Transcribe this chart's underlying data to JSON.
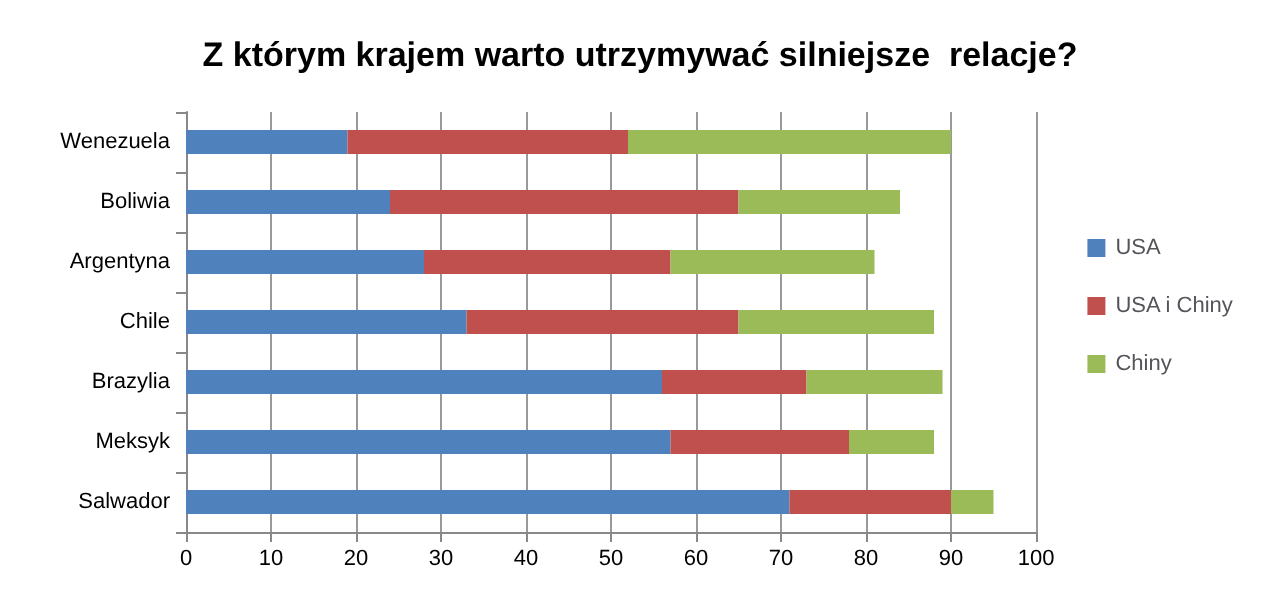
{
  "chart_data": {
    "type": "bar",
    "orientation": "horizontal",
    "stacked": true,
    "title": "Z którym krajem warto utrzymywać silniejsze  relacje?",
    "categories": [
      "Wenezuela",
      "Boliwia",
      "Argentyna",
      "Chile",
      "Brazylia",
      "Meksyk",
      "Salwador"
    ],
    "series": [
      {
        "name": "USA",
        "color": "#4f81bd",
        "values": [
          19,
          24,
          28,
          33,
          56,
          57,
          71
        ]
      },
      {
        "name": "USA i Chiny",
        "color": "#c0504d",
        "values": [
          33,
          41,
          29,
          32,
          17,
          21,
          19
        ]
      },
      {
        "name": "Chiny",
        "color": "#9bbb59",
        "values": [
          38,
          19,
          24,
          23,
          16,
          10,
          5
        ]
      }
    ],
    "xlim": [
      0,
      100
    ],
    "xticks": [
      0,
      10,
      20,
      30,
      40,
      50,
      60,
      70,
      80,
      90,
      100
    ],
    "grid": "x",
    "legend": "right"
  }
}
